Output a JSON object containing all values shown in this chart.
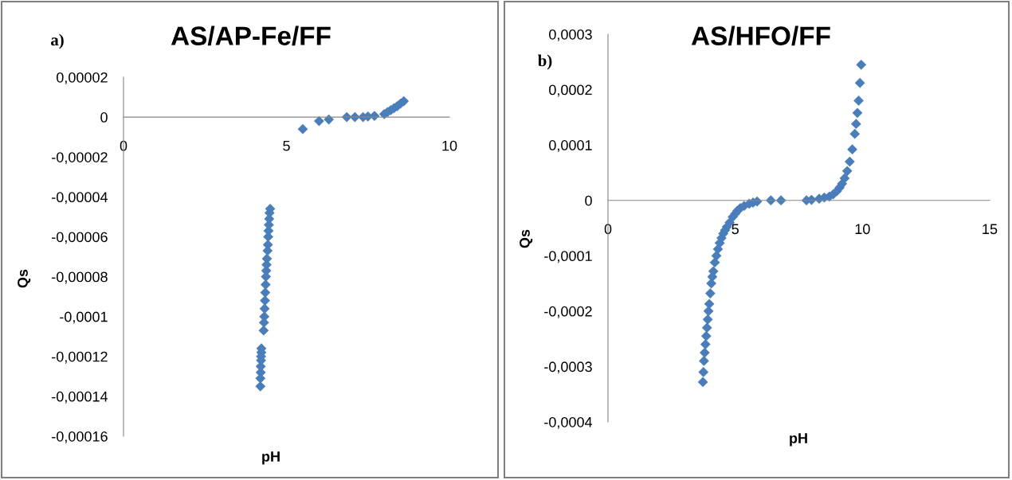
{
  "chart_data": [
    {
      "type": "scatter",
      "title": "AS/AP-Fe/FF",
      "xlabel": "pH",
      "ylabel": "Qs",
      "annotations": [
        "a)"
      ],
      "marker": "diamond",
      "grid": false,
      "legend": false,
      "xlim": [
        0,
        10
      ],
      "xticks": [
        0,
        5,
        10
      ],
      "ylim": [
        -0.00016,
        2e-05
      ],
      "yticks": [
        {
          "value": -0.00016,
          "label": "-0,00016"
        },
        {
          "value": -0.00014,
          "label": "-0,00014"
        },
        {
          "value": -0.00012,
          "label": "-0,00012"
        },
        {
          "value": -0.0001,
          "label": "-0,0001"
        },
        {
          "value": -8e-05,
          "label": "-0,00008"
        },
        {
          "value": -6e-05,
          "label": "-0,00006"
        },
        {
          "value": -4e-05,
          "label": "-0,00004"
        },
        {
          "value": -2e-05,
          "label": "-0,00002"
        },
        0,
        {
          "value": 2e-05,
          "label": "0,00002"
        }
      ],
      "series": [
        {
          "color": "#4a7ebb",
          "x": [
            4.2,
            4.2,
            4.21,
            4.21,
            4.22,
            4.22,
            4.23,
            4.23,
            4.3,
            4.31,
            4.32,
            4.33,
            4.34,
            4.35,
            4.36,
            4.37,
            4.38,
            4.39,
            4.4,
            4.42,
            4.43,
            4.44,
            4.45,
            4.46,
            4.47,
            4.48,
            4.5,
            5.5,
            6.0,
            6.3,
            6.85,
            7.1,
            7.35,
            7.5,
            7.7,
            8.0,
            8.1,
            8.2,
            8.3,
            8.4,
            8.5,
            8.6
          ],
          "values": [
            -0.000135,
            -0.000131,
            -0.000128,
            -0.000125,
            -0.000122,
            -0.00012,
            -0.000118,
            -0.000116,
            -0.000107,
            -0.000103,
            -0.0001,
            -9.6e-05,
            -9.2e-05,
            -8.8e-05,
            -8.4e-05,
            -8e-05,
            -7.7e-05,
            -7.4e-05,
            -7.1e-05,
            -6.7e-05,
            -6.4e-05,
            -6e-05,
            -5.7e-05,
            -5.4e-05,
            -5.1e-05,
            -4.8e-05,
            -4.6e-05,
            -6e-06,
            -2e-06,
            -1.2e-06,
            0,
            0,
            0,
            3e-07,
            6e-07,
            1.5e-06,
            2.5e-06,
            3.5e-06,
            4.5e-06,
            5.5e-06,
            6.8e-06,
            8e-06
          ]
        }
      ]
    },
    {
      "type": "scatter",
      "title": "AS/HFO/FF",
      "xlabel": "pH",
      "ylabel": "Qs",
      "annotations": [
        "b)"
      ],
      "marker": "diamond",
      "grid": false,
      "legend": false,
      "xlim": [
        0,
        15
      ],
      "xticks": [
        0,
        5,
        10,
        15
      ],
      "ylim": [
        -0.0004,
        0.0003
      ],
      "yticks": [
        {
          "value": -0.0004,
          "label": "-0,0004"
        },
        {
          "value": -0.0003,
          "label": "-0,0003"
        },
        {
          "value": -0.0002,
          "label": "-0,0002"
        },
        {
          "value": -0.0001,
          "label": "-0,0001"
        },
        0,
        {
          "value": 0.0001,
          "label": "0,0001"
        },
        {
          "value": 0.0002,
          "label": "0,0002"
        },
        {
          "value": 0.0003,
          "label": "0,0003"
        }
      ],
      "series": [
        {
          "color": "#4a7ebb",
          "x": [
            3.73,
            3.75,
            3.77,
            3.8,
            3.83,
            3.86,
            3.89,
            3.92,
            3.95,
            3.98,
            4.02,
            4.06,
            4.1,
            4.14,
            4.2,
            4.26,
            4.32,
            4.39,
            4.46,
            4.53,
            4.6,
            4.67,
            4.78,
            4.9,
            5.0,
            5.08,
            5.2,
            5.35,
            5.55,
            5.7,
            5.86,
            6.4,
            6.8,
            7.8,
            8.0,
            8.3,
            8.5,
            8.7,
            8.85,
            9.0,
            9.1,
            9.2,
            9.3,
            9.4,
            9.5,
            9.6,
            9.7,
            9.75,
            9.8,
            9.85,
            9.9,
            9.95
          ],
          "values": [
            -0.000328,
            -0.00031,
            -0.00029,
            -0.000275,
            -0.00026,
            -0.000245,
            -0.00023,
            -0.000215,
            -0.0002,
            -0.000187,
            -0.000168,
            -0.00015,
            -0.000138,
            -0.000128,
            -0.000112,
            -0.0001,
            -8.8e-05,
            -7.7e-05,
            -6.8e-05,
            -6e-05,
            -5.4e-05,
            -4.8e-05,
            -4e-05,
            -3e-05,
            -2.4e-05,
            -1.9e-05,
            -1.4e-05,
            -1e-05,
            -6e-06,
            -4e-06,
            -2e-06,
            0,
            0,
            0,
            1e-06,
            3e-06,
            5e-06,
            7e-06,
            1.1e-05,
            1.7e-05,
            2.3e-05,
            3e-05,
            4e-05,
            5.3e-05,
            7e-05,
            9.2e-05,
            0.00012,
            0.000138,
            0.000158,
            0.00018,
            0.000212,
            0.000245
          ]
        }
      ]
    }
  ]
}
